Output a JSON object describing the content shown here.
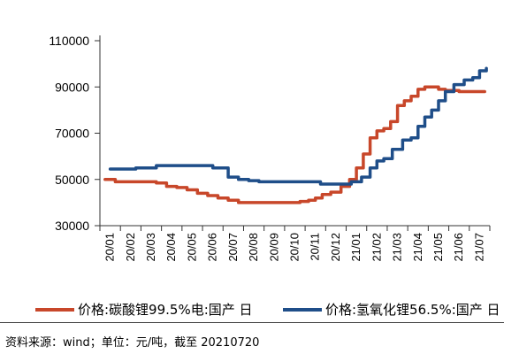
{
  "chart_data": {
    "type": "line",
    "x": [
      "20/01",
      "20/02",
      "20/03",
      "20/04",
      "20/05",
      "20/06",
      "20/07",
      "20/08",
      "20/09",
      "20/10",
      "20/11",
      "20/12",
      "21/01",
      "21/02",
      "21/03",
      "21/04",
      "21/05",
      "21/06",
      "21/07"
    ],
    "ylim": [
      30000,
      110000
    ],
    "yticks": [
      30000,
      50000,
      70000,
      90000,
      110000
    ],
    "series": [
      {
        "name": "价格:碳酸锂99.5%电:国产 日",
        "color": "#c8472a",
        "points": [
          [
            "20/01",
            50000
          ],
          [
            "20/01",
            49000
          ],
          [
            "20/02",
            49000
          ],
          [
            "20/03",
            49000
          ],
          [
            "20/03",
            48500
          ],
          [
            "20/04",
            47000
          ],
          [
            "20/04",
            46500
          ],
          [
            "20/05",
            45500
          ],
          [
            "20/05",
            44000
          ],
          [
            "20/06",
            43000
          ],
          [
            "20/06",
            42000
          ],
          [
            "20/07",
            41000
          ],
          [
            "20/07",
            40000
          ],
          [
            "20/08",
            40000
          ],
          [
            "20/09",
            40000
          ],
          [
            "20/10",
            40000
          ],
          [
            "20/10",
            40500
          ],
          [
            "20/11",
            41000
          ],
          [
            "20/11",
            42000
          ],
          [
            "20/11",
            43500
          ],
          [
            "20/12",
            44500
          ],
          [
            "20/12",
            47000
          ],
          [
            "21/01",
            50000
          ],
          [
            "21/01",
            55000
          ],
          [
            "21/01",
            61000
          ],
          [
            "21/02",
            68000
          ],
          [
            "21/02",
            71000
          ],
          [
            "21/02",
            72000
          ],
          [
            "21/03",
            75000
          ],
          [
            "21/03",
            82000
          ],
          [
            "21/03",
            84000
          ],
          [
            "21/04",
            86000
          ],
          [
            "21/04",
            89000
          ],
          [
            "21/04",
            90000
          ],
          [
            "21/05",
            90000
          ],
          [
            "21/05",
            89000
          ],
          [
            "21/05",
            88500
          ],
          [
            "21/06",
            88000
          ],
          [
            "21/07",
            88000
          ],
          [
            "21/07",
            88000
          ]
        ]
      },
      {
        "name": "价格:氢氧化锂56.5%:国产 日",
        "color": "#1f4e89",
        "points": [
          [
            "20/01",
            54500
          ],
          [
            "20/02",
            54500
          ],
          [
            "20/02",
            55000
          ],
          [
            "20/03",
            55000
          ],
          [
            "20/03",
            56000
          ],
          [
            "20/04",
            56000
          ],
          [
            "20/05",
            56000
          ],
          [
            "20/06",
            56000
          ],
          [
            "20/06",
            55000
          ],
          [
            "20/06",
            55000
          ],
          [
            "20/07",
            51000
          ],
          [
            "20/07",
            50000
          ],
          [
            "20/08",
            49500
          ],
          [
            "20/08",
            49000
          ],
          [
            "20/09",
            49000
          ],
          [
            "20/10",
            49000
          ],
          [
            "20/11",
            49000
          ],
          [
            "20/11",
            48000
          ],
          [
            "20/12",
            48000
          ],
          [
            "20/12",
            48000
          ],
          [
            "21/01",
            49000
          ],
          [
            "21/01",
            51000
          ],
          [
            "21/02",
            55000
          ],
          [
            "21/02",
            58000
          ],
          [
            "21/02",
            59000
          ],
          [
            "21/03",
            63000
          ],
          [
            "21/03",
            67000
          ],
          [
            "21/04",
            68000
          ],
          [
            "21/04",
            73000
          ],
          [
            "21/04",
            77000
          ],
          [
            "21/05",
            80000
          ],
          [
            "21/05",
            84000
          ],
          [
            "21/05",
            88000
          ],
          [
            "21/06",
            91000
          ],
          [
            "21/06",
            93000
          ],
          [
            "21/07",
            94000
          ],
          [
            "21/07",
            97000
          ],
          [
            "21/07",
            98000
          ]
        ]
      }
    ]
  },
  "footnote": "资料来源：wind；单位：元/吨，截至 20210720"
}
